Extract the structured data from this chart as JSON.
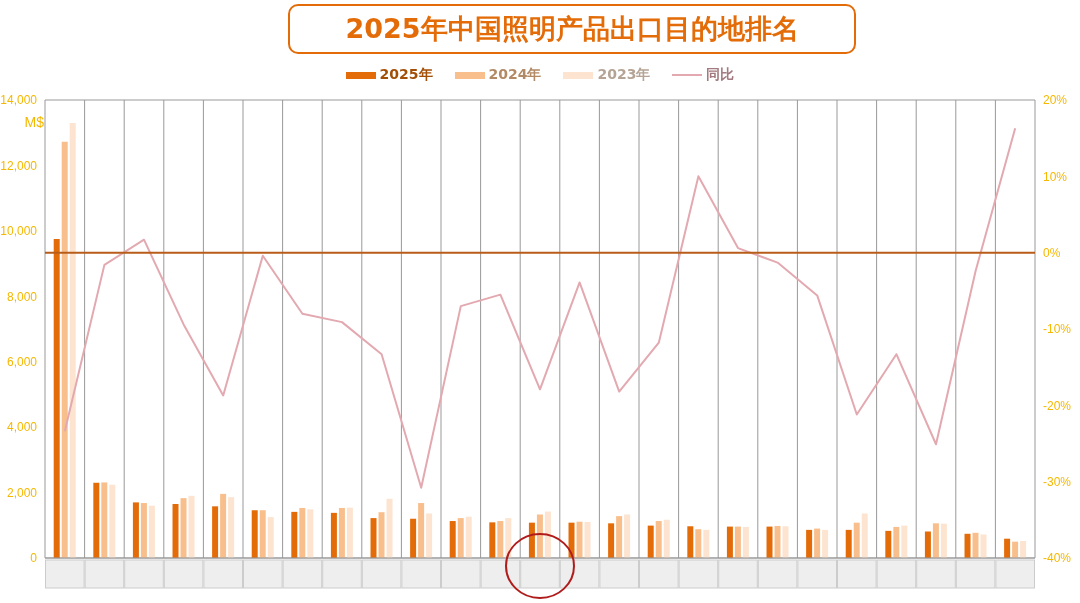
{
  "chart_data": {
    "type": "bar",
    "title": "2025年中国照明产品出口目的地排名",
    "ylabel": "M$",
    "categories": [
      null,
      null,
      null,
      null,
      null,
      null,
      null,
      null,
      null,
      null,
      null,
      null,
      null,
      null,
      null,
      null,
      null,
      null,
      null,
      null,
      null,
      null,
      null,
      null,
      null
    ],
    "series": [
      {
        "name": "2025年",
        "color": "#e36c09",
        "values": [
          9750,
          2300,
          1700,
          1650,
          1580,
          1460,
          1410,
          1380,
          1220,
          1200,
          1130,
          1090,
          1080,
          1080,
          1060,
          990,
          970,
          960,
          960,
          860,
          860,
          830,
          810,
          740,
          590
        ]
      },
      {
        "name": "2024年",
        "color": "#f8bf8c",
        "values": [
          12720,
          2310,
          1680,
          1830,
          1960,
          1460,
          1530,
          1530,
          1400,
          1680,
          1220,
          1130,
          1330,
          1110,
          1280,
          1130,
          880,
          960,
          980,
          900,
          1080,
          950,
          1060,
          770,
          500
        ]
      },
      {
        "name": "2023年",
        "color": "#fce4d0",
        "values": [
          13300,
          2240,
          1600,
          1900,
          1860,
          1250,
          1490,
          1540,
          1810,
          1360,
          1260,
          1220,
          1420,
          1100,
          1330,
          1170,
          860,
          950,
          970,
          860,
          1360,
          990,
          1050,
          720,
          520
        ]
      },
      {
        "name": "同比",
        "type": "line",
        "axis": "y2",
        "color": "#e3a9b0",
        "values": [
          -23.4,
          -1.6,
          1.7,
          -9.4,
          -18.7,
          -0.4,
          -8.0,
          -9.1,
          -13.3,
          -30.8,
          -7.0,
          -5.5,
          -17.9,
          -3.9,
          -18.2,
          -11.8,
          10.0,
          0.6,
          -1.3,
          -5.6,
          -21.2,
          -13.3,
          -25.1,
          -2.4,
          16.3
        ]
      }
    ],
    "ylim": [
      0,
      14000
    ],
    "yticks": [
      {
        "value": 0,
        "label": "0"
      },
      {
        "value": 2000,
        "label": "2,000"
      },
      {
        "value": 4000,
        "label": "4,000"
      },
      {
        "value": 6000,
        "label": "6,000"
      },
      {
        "value": 8000,
        "label": "8,000"
      },
      {
        "value": 10000,
        "label": "10,000"
      },
      {
        "value": 12000,
        "label": "12,000"
      },
      {
        "value": 14000,
        "label": "14,000"
      }
    ],
    "y2lim": [
      -40,
      20
    ],
    "y2ticks": [
      {
        "value": -40,
        "label": "-40%"
      },
      {
        "value": -30,
        "label": "-30%"
      },
      {
        "value": -20,
        "label": "-20%"
      },
      {
        "value": -10,
        "label": "-10%"
      },
      {
        "value": 0,
        "label": "0%"
      },
      {
        "value": 10,
        "label": "10%"
      },
      {
        "value": 20,
        "label": "20%"
      }
    ],
    "ref_lines": [
      {
        "axis": "y2",
        "value": 0,
        "color": "#b85c1a"
      }
    ],
    "grid": true,
    "legend": "top",
    "marker": "none",
    "line_style": "solid"
  }
}
